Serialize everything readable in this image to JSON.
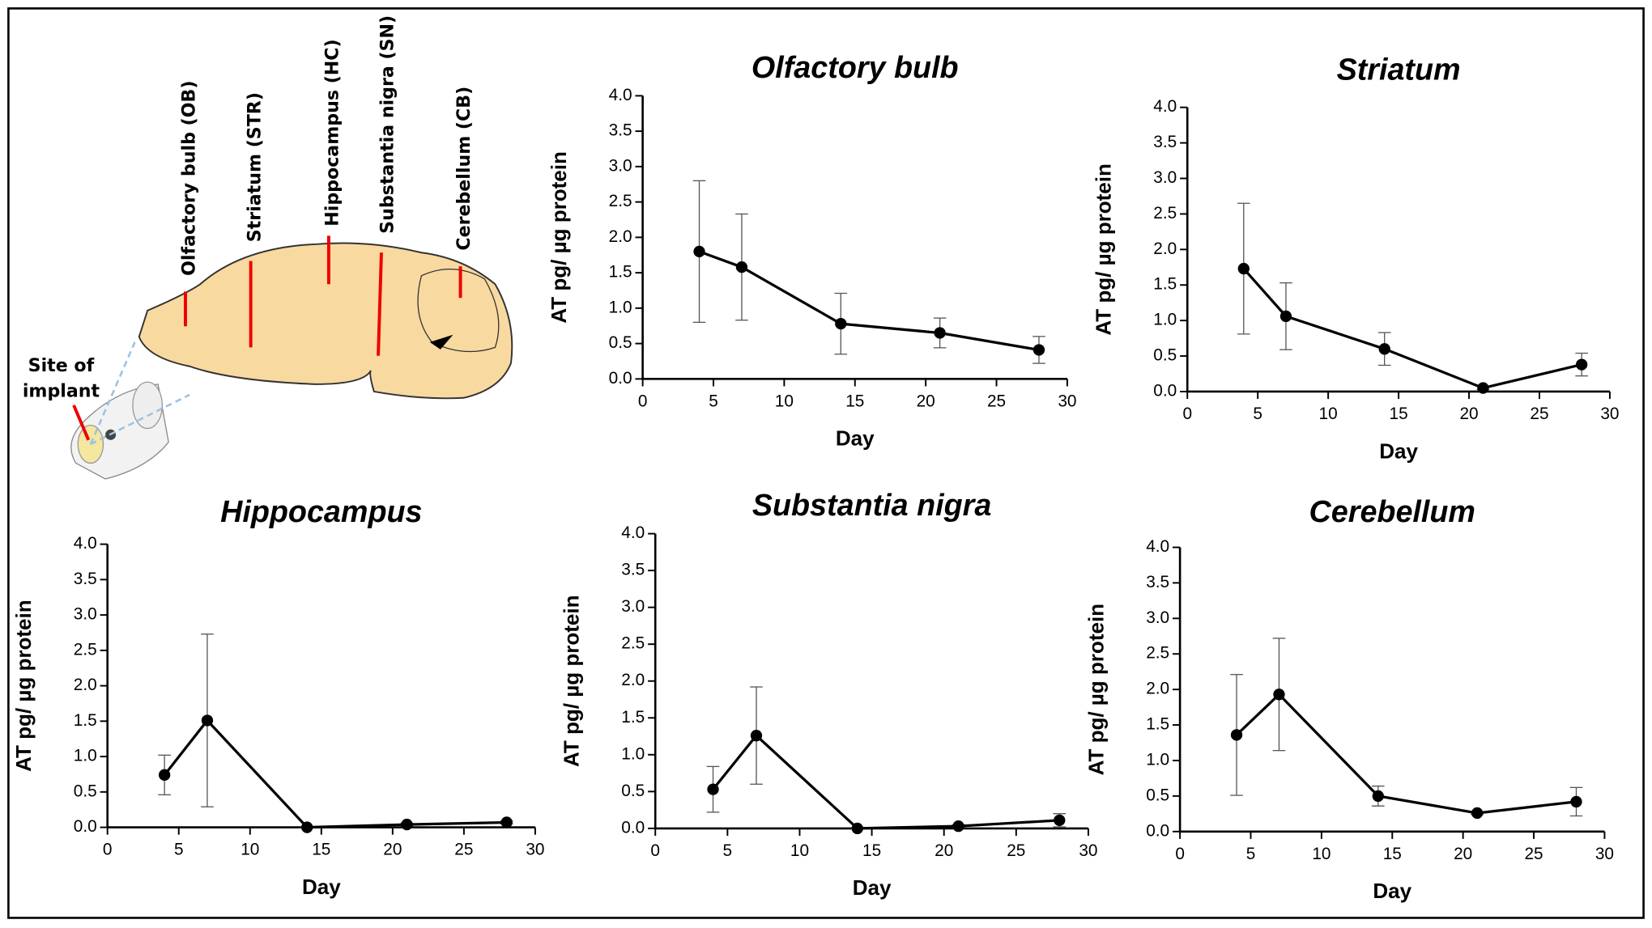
{
  "diagram": {
    "regions": [
      "Olfactory bulb (OB)",
      "Striatum (STR)",
      "Hippocampus (HC)",
      "Substantia nigra (SN)",
      "Cerebellum (CB)"
    ],
    "implant": [
      "Site of",
      "implant"
    ]
  },
  "chart_data": [
    {
      "type": "line",
      "title": "Olfactory bulb",
      "x_label": "Day",
      "y_label": "AT pg/ µg protein",
      "color": "#000000",
      "x": [
        4,
        7,
        14,
        21,
        28
      ],
      "values": [
        1.8,
        1.58,
        0.78,
        0.65,
        0.41
      ],
      "errors": [
        1.0,
        0.75,
        0.43,
        0.21,
        0.19
      ],
      "xlim": [
        0,
        30
      ],
      "xticks": [
        0,
        5,
        10,
        15,
        20,
        25,
        30
      ],
      "ylim": [
        0,
        4
      ],
      "yticks": [
        {
          "value": 0,
          "label": "0.0"
        },
        0.5,
        {
          "value": 1,
          "label": "1.0"
        },
        1.5,
        {
          "value": 2,
          "label": "2.0"
        },
        2.5,
        {
          "value": 3,
          "label": "3.0"
        },
        3.5,
        {
          "value": 4,
          "label": "4.0"
        }
      ]
    },
    {
      "type": "line",
      "title": "Striatum",
      "x_label": "Day",
      "y_label": "AT pg/ µg protein",
      "color": "#000000",
      "x": [
        4,
        7,
        14,
        21,
        28
      ],
      "values": [
        1.73,
        1.06,
        0.6,
        0.05,
        0.38
      ],
      "errors": [
        0.92,
        0.47,
        0.23,
        0.02,
        0.16
      ],
      "xlim": [
        0,
        30
      ],
      "xticks": [
        0,
        5,
        10,
        15,
        20,
        25,
        30
      ],
      "ylim": [
        0,
        4
      ],
      "yticks": [
        {
          "value": 0,
          "label": "0.0"
        },
        0.5,
        {
          "value": 1,
          "label": "1.0"
        },
        1.5,
        {
          "value": 2,
          "label": "2.0"
        },
        2.5,
        {
          "value": 3,
          "label": "3.0"
        },
        3.5,
        {
          "value": 4,
          "label": "4.0"
        }
      ]
    },
    {
      "type": "line",
      "title": "Hippocampus",
      "x_label": "Day",
      "y_label": "AT pg/ µg protein",
      "color": "#000000",
      "x": [
        4,
        7,
        14,
        21,
        28
      ],
      "values": [
        0.74,
        1.51,
        0.0,
        0.04,
        0.07
      ],
      "errors": [
        0.28,
        1.22,
        0.01,
        0.02,
        0.02
      ],
      "xlim": [
        0,
        30
      ],
      "xticks": [
        0,
        5,
        10,
        15,
        20,
        25,
        30
      ],
      "ylim": [
        0,
        4
      ],
      "yticks": [
        {
          "value": 0,
          "label": "0.0"
        },
        0.5,
        {
          "value": 1,
          "label": "1.0"
        },
        1.5,
        {
          "value": 2,
          "label": "2.0"
        },
        2.5,
        {
          "value": 3,
          "label": "3.0"
        },
        3.5,
        {
          "value": 4,
          "label": "4.0"
        }
      ]
    },
    {
      "type": "line",
      "title": "Substantia nigra",
      "x_label": "Day",
      "y_label": "AT pg/ µg protein",
      "color": "#000000",
      "x": [
        4,
        7,
        14,
        21,
        28
      ],
      "values": [
        0.53,
        1.26,
        0.0,
        0.03,
        0.11
      ],
      "errors": [
        0.31,
        0.66,
        0.01,
        0.02,
        0.09
      ],
      "xlim": [
        0,
        30
      ],
      "xticks": [
        0,
        5,
        10,
        15,
        20,
        25,
        30
      ],
      "ylim": [
        0,
        4
      ],
      "yticks": [
        {
          "value": 0,
          "label": "0.0"
        },
        0.5,
        {
          "value": 1,
          "label": "1.0"
        },
        1.5,
        {
          "value": 2,
          "label": "2.0"
        },
        2.5,
        {
          "value": 3,
          "label": "3.0"
        },
        3.5,
        {
          "value": 4,
          "label": "4.0"
        }
      ]
    },
    {
      "type": "line",
      "title": "Cerebellum",
      "x_label": "Day",
      "y_label": "AT pg/ µg protein",
      "color": "#000000",
      "x": [
        4,
        7,
        14,
        21,
        28
      ],
      "values": [
        1.36,
        1.93,
        0.5,
        0.26,
        0.42
      ],
      "errors": [
        0.85,
        0.79,
        0.14,
        0.02,
        0.2
      ],
      "xlim": [
        0,
        30
      ],
      "xticks": [
        0,
        5,
        10,
        15,
        20,
        25,
        30
      ],
      "ylim": [
        0,
        4
      ],
      "yticks": [
        {
          "value": 0,
          "label": "0.0"
        },
        0.5,
        {
          "value": 1,
          "label": "1.0"
        },
        1.5,
        {
          "value": 2,
          "label": "2.0"
        },
        2.5,
        {
          "value": 3,
          "label": "3.0"
        },
        3.5,
        {
          "value": 4,
          "label": "4.0"
        }
      ]
    }
  ]
}
